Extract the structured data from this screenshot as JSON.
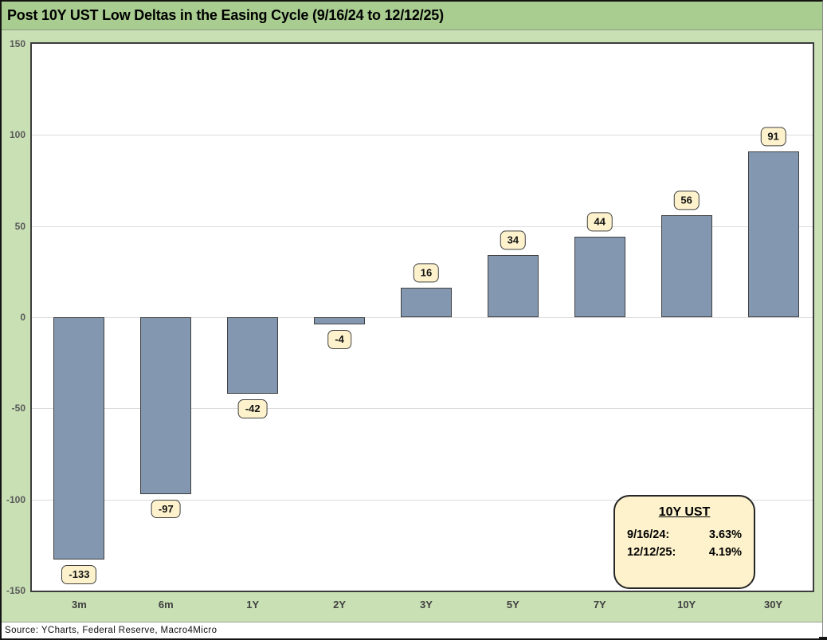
{
  "title": "Post 10Y UST Low Deltas in the Easing Cycle (9/16/24 to 12/12/25)",
  "source": "Source: YCharts, Federal Reserve, Macro4Micro",
  "callout": {
    "title": "10Y UST",
    "rows": [
      {
        "label": "9/16/24:",
        "value": "3.63%"
      },
      {
        "label": "12/12/25:",
        "value": "4.19%"
      }
    ]
  },
  "chart_data": {
    "type": "bar",
    "title": "Post 10Y UST Low Deltas in the Easing Cycle (9/16/24 to 12/12/25)",
    "categories": [
      "3m",
      "6m",
      "1Y",
      "2Y",
      "3Y",
      "5Y",
      "7Y",
      "10Y",
      "30Y"
    ],
    "values": [
      -133,
      -97,
      -42,
      -4,
      16,
      34,
      44,
      56,
      91
    ],
    "data_labels": [
      "-133",
      "-97",
      "-42",
      "-4",
      "16",
      "34",
      "44",
      "56",
      "91"
    ],
    "xlabel": "",
    "ylabel": "",
    "ylim": [
      -150,
      150
    ],
    "yticks": [
      150,
      100,
      50,
      0,
      -50,
      -100,
      -150
    ],
    "grid": true,
    "legend": "none"
  },
  "colors": {
    "title_bg": "#A9CD90",
    "chart_bg": "#C9E0B5",
    "plot_bg": "#FFFFFF",
    "gridline": "#DCDCDC",
    "bar_fill": "#8497B0",
    "bar_border": "#404040",
    "label_box_bg": "#FDF2CC",
    "label_box_border": "#404040",
    "frame_border": "#141414"
  }
}
